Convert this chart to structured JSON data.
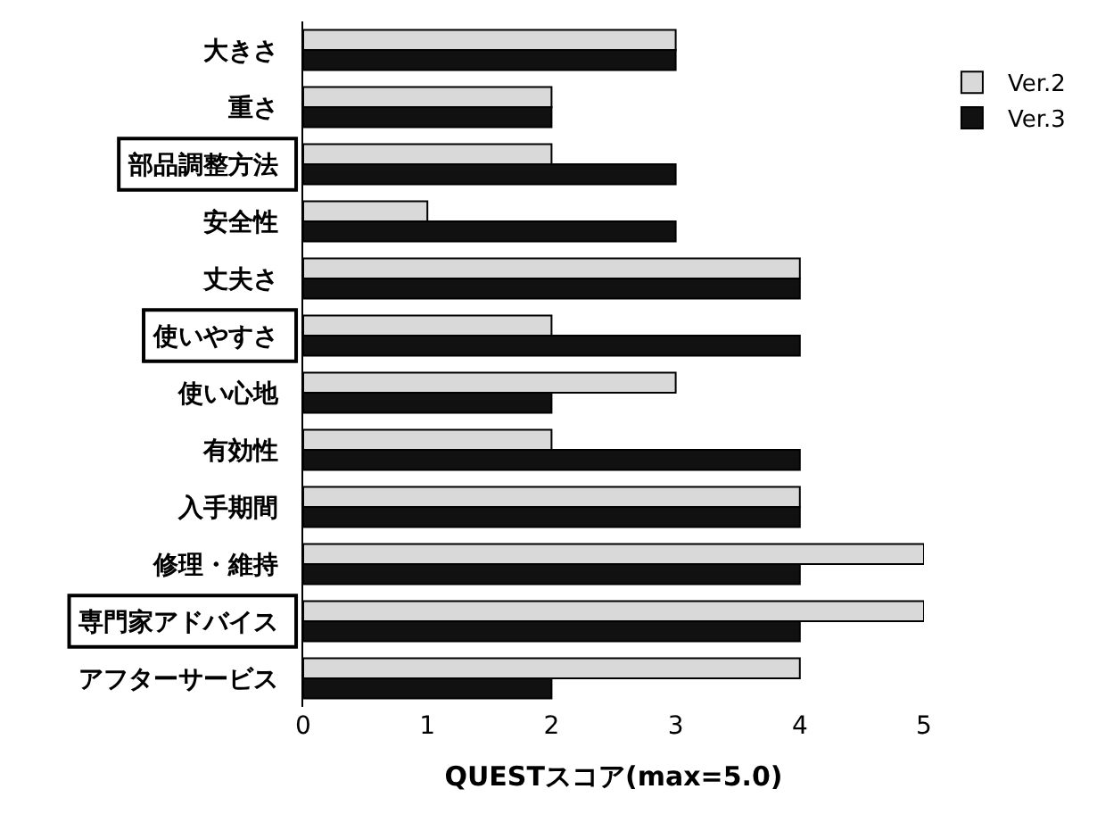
{
  "chart_data": {
    "type": "bar",
    "orientation": "horizontal",
    "xlabel": "QUESTスコア(max=5.0)",
    "categories": [
      "大きさ",
      "重さ",
      "部品調整方法",
      "安全性",
      "丈夫さ",
      "使いやすさ",
      "使い心地",
      "有効性",
      "入手期間",
      "修理・維持",
      "専門家アドバイス",
      "アフターサービス"
    ],
    "series": [
      {
        "name": "Ver.2",
        "color": "#d9d9d9",
        "values": [
          3,
          2,
          2,
          1,
          4,
          2,
          3,
          2,
          4,
          5,
          5,
          4
        ]
      },
      {
        "name": "Ver.3",
        "color": "#111111",
        "values": [
          3,
          2,
          3,
          3,
          4,
          4,
          2,
          4,
          4,
          4,
          4,
          2
        ]
      }
    ],
    "xlim": [
      0,
      5
    ],
    "xticks": [
      0,
      1,
      2,
      3,
      4,
      5
    ],
    "legend": "top right"
  }
}
